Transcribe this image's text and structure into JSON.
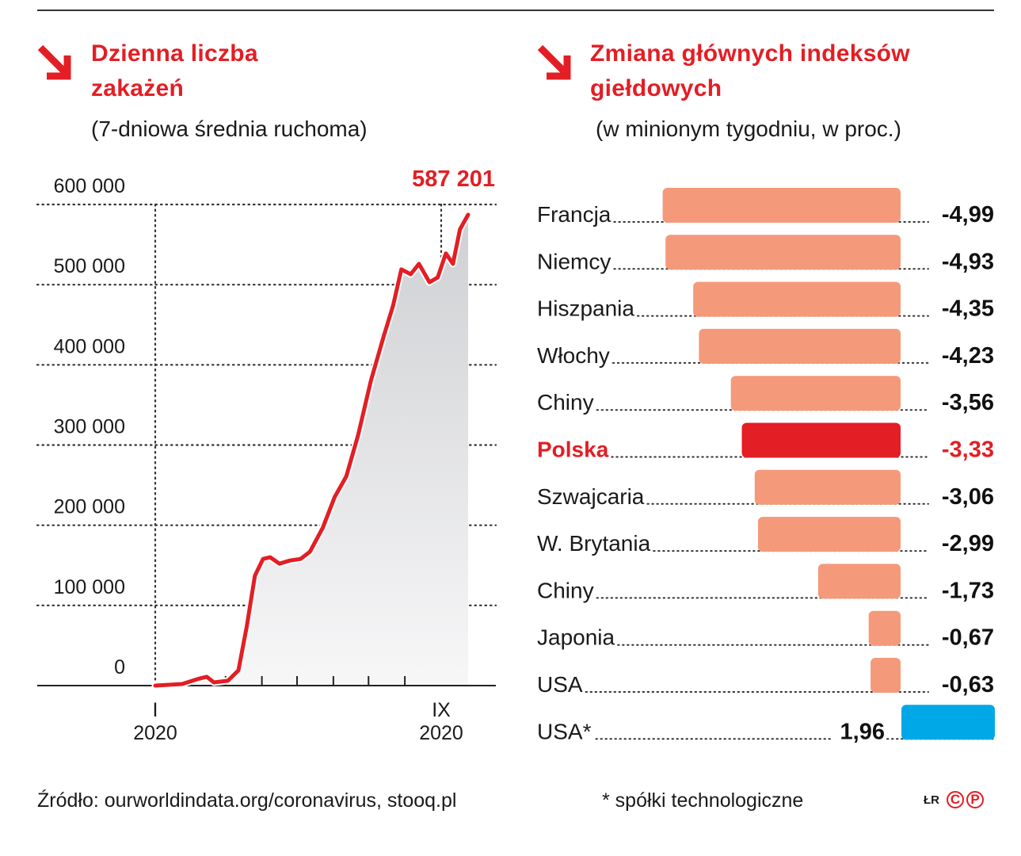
{
  "left": {
    "title_line1": "Dzienna liczba",
    "title_line2": "zakażeń",
    "subtitle": "(7-dniowa średnia ruchoma)"
  },
  "right": {
    "title_line1": "Zmiana głównych indeksów",
    "title_line2": "giełdowych",
    "subtitle": "(w minionym tygodniu, w proc.)"
  },
  "footer": {
    "source": "Źródło: ourworldindata.org/coronavirus, stooq.pl",
    "note": "* spółki technologiczne",
    "logo_text": "ŁR",
    "logo_c": "C",
    "logo_p": "P"
  },
  "colors": {
    "accent": "#e31e24",
    "negative": "#f4997a",
    "highlight": "#e31e24",
    "positive": "#00a8e8",
    "area": "#d8d9dc"
  },
  "chart_data": [
    {
      "type": "area",
      "title": "Dzienna liczba zakażeń",
      "subtitle": "(7-dniowa średnia ruchoma)",
      "ylim": [
        0,
        600000
      ],
      "yticks": [
        "0",
        "100 000",
        "200 000",
        "300 000",
        "400 000",
        "500 000",
        "600 000"
      ],
      "xtick_labels": [
        {
          "month": "I",
          "year": "2020",
          "date": "2020-01-01"
        },
        {
          "month": "IX",
          "year": "2020",
          "date": "2020-09-01"
        }
      ],
      "grid": true,
      "annotation": "587 201",
      "x": [
        "2020-01-01",
        "2020-01-24",
        "2020-02-07",
        "2020-02-14",
        "2020-02-20",
        "2020-03-03",
        "2020-03-12",
        "2020-03-19",
        "2020-03-26",
        "2020-04-02",
        "2020-04-08",
        "2020-04-16",
        "2020-04-25",
        "2020-05-04",
        "2020-05-12",
        "2020-05-23",
        "2020-06-02",
        "2020-06-12",
        "2020-06-22",
        "2020-07-03",
        "2020-07-14",
        "2020-07-22",
        "2020-07-29",
        "2020-08-06",
        "2020-08-13",
        "2020-08-22",
        "2020-08-29",
        "2020-09-05",
        "2020-09-11",
        "2020-09-17",
        "2020-09-24"
      ],
      "y": [
        0,
        2000,
        8500,
        11000,
        4000,
        6000,
        19000,
        73000,
        137000,
        158000,
        160000,
        152000,
        156000,
        158000,
        167000,
        197000,
        235000,
        261000,
        312000,
        380000,
        436000,
        474000,
        519000,
        513000,
        526000,
        503000,
        509000,
        539000,
        526000,
        569000,
        587201
      ]
    },
    {
      "type": "bar",
      "title": "Zmiana głównych indeksów giełdowych",
      "subtitle": "(w minionym tygodniu, w proc.)",
      "orientation": "horizontal",
      "categories": [
        "Francja",
        "Niemcy",
        "Hiszpania",
        "Włochy",
        "Chiny",
        "Polska",
        "Szwajcaria",
        "W. Brytania",
        "Chiny",
        "Japonia",
        "USA",
        "USA*"
      ],
      "values": [
        -4.99,
        -4.93,
        -4.35,
        -4.23,
        -3.56,
        -3.33,
        -3.06,
        -2.99,
        -1.73,
        -0.67,
        -0.63,
        1.96
      ],
      "value_labels": [
        "-4,99",
        "-4,93",
        "-4,35",
        "-4,23",
        "-3,56",
        "-3,33",
        "-3,06",
        "-2,99",
        "-1,73",
        "-0,67",
        "-0,63",
        "1,96"
      ],
      "highlight": "Polska"
    }
  ]
}
